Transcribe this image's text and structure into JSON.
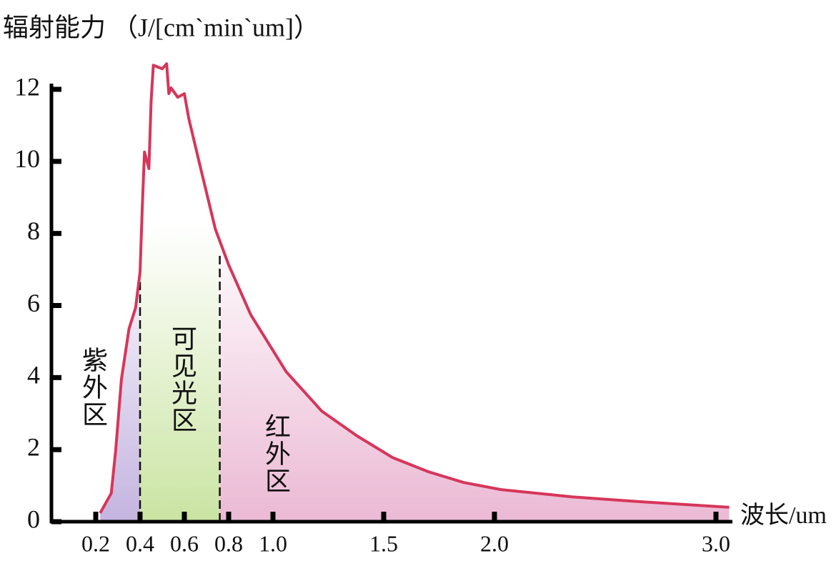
{
  "chart_data": {
    "type": "line",
    "title": "辐射能力 （J/[cm`min`um]）",
    "x_label": "波长/um",
    "x": [
      0.22,
      0.27,
      0.29,
      0.316,
      0.35,
      0.38,
      0.4,
      0.41,
      0.42,
      0.44,
      0.45,
      0.46,
      0.5,
      0.52,
      0.53,
      0.54,
      0.57,
      0.6,
      0.62,
      0.67,
      0.74,
      0.8,
      0.9,
      1.06,
      1.22,
      1.38,
      1.54,
      1.7,
      1.86,
      2.03,
      2.35,
      2.67,
      3.06
    ],
    "series": [
      {
        "color": "#d6365a",
        "values": [
          0.24,
          0.79,
          1.98,
          3.96,
          5.35,
          5.94,
          6.93,
          8.71,
          10.26,
          9.8,
          11.68,
          12.67,
          12.57,
          12.71,
          11.88,
          12.04,
          11.78,
          11.88,
          11.19,
          9.9,
          8.12,
          7.13,
          5.74,
          4.16,
          3.07,
          2.38,
          1.78,
          1.39,
          1.09,
          0.89,
          0.69,
          0.55,
          0.4
        ]
      }
    ],
    "regions": [
      {
        "label": "紫外区",
        "range": [
          0.2,
          0.4
        ],
        "color": "#c4b4e0"
      },
      {
        "label": "可见光区",
        "range": [
          0.4,
          0.76
        ],
        "color": "#cae4a2"
      },
      {
        "label": "红外区",
        "range": [
          0.76,
          3.06
        ],
        "color": "#ebb9d4"
      }
    ],
    "xlim": [
      0,
      3.1
    ],
    "ylim": [
      0,
      12
    ],
    "xticks": [
      0.2,
      0.4,
      0.6,
      0.8,
      {
        "value": 1,
        "label": "1.0"
      },
      1.5,
      {
        "value": 2,
        "label": "2.0"
      },
      {
        "value": 3,
        "label": "3.0"
      }
    ],
    "yticks": [
      0,
      2,
      4,
      6,
      8,
      10,
      12
    ]
  }
}
